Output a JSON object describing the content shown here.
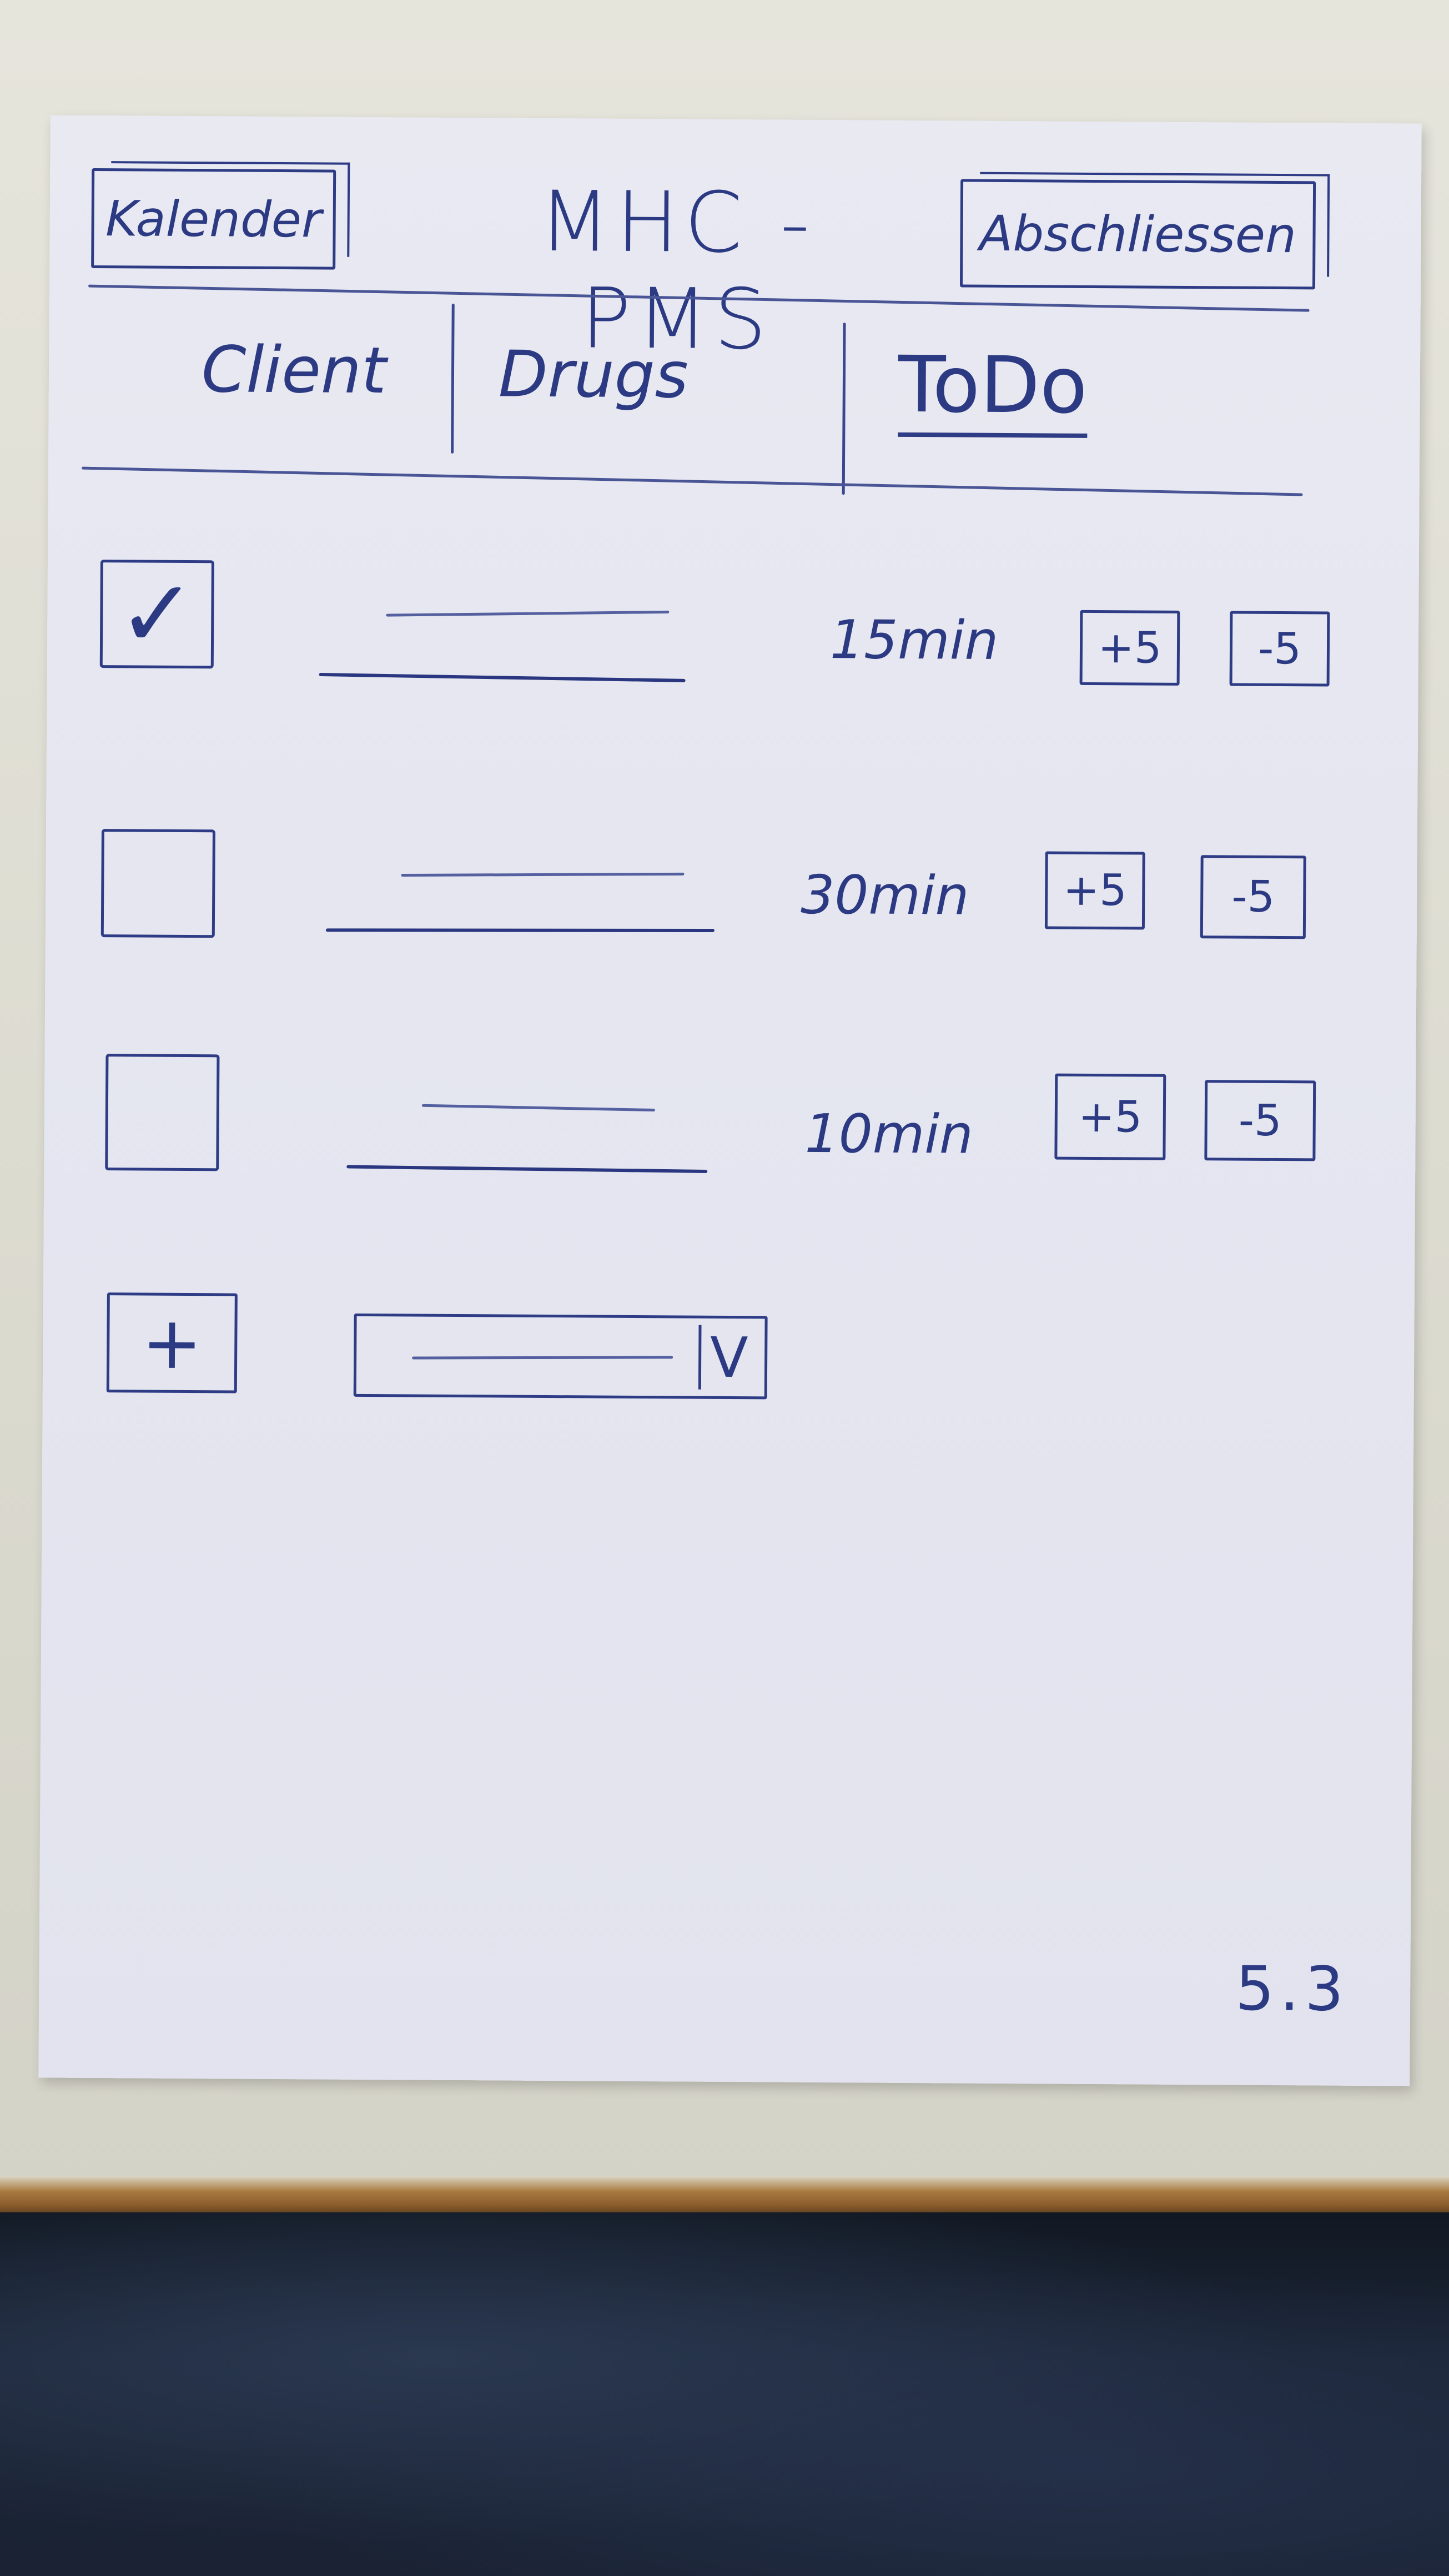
{
  "header": {
    "app_title": "MHC - PMS",
    "calendar_button": "Kalender",
    "finish_button": "Abschliessen"
  },
  "tabs": [
    {
      "label": "Client"
    },
    {
      "label": "Drugs"
    },
    {
      "label": "ToDo"
    }
  ],
  "active_tab": "ToDo",
  "todos": [
    {
      "checked": true,
      "check_mark": "✓",
      "duration": "15min",
      "plus_label": "+5",
      "minus_label": "-5"
    },
    {
      "checked": false,
      "check_mark": "",
      "duration": "30min",
      "plus_label": "+5",
      "minus_label": "-5"
    },
    {
      "checked": false,
      "check_mark": "",
      "duration": "10min",
      "plus_label": "+5",
      "minus_label": "-5"
    }
  ],
  "add_row": {
    "add_label": "+",
    "dropdown_arrow": "V"
  },
  "page_number": "5.3",
  "colors": {
    "ink": "#2b3a82",
    "paper": "#e6e7f0",
    "desk": "#e3e2d8"
  },
  "icons": {
    "check": "check-icon",
    "add": "plus-icon",
    "dropdown": "chevron-down-icon"
  }
}
